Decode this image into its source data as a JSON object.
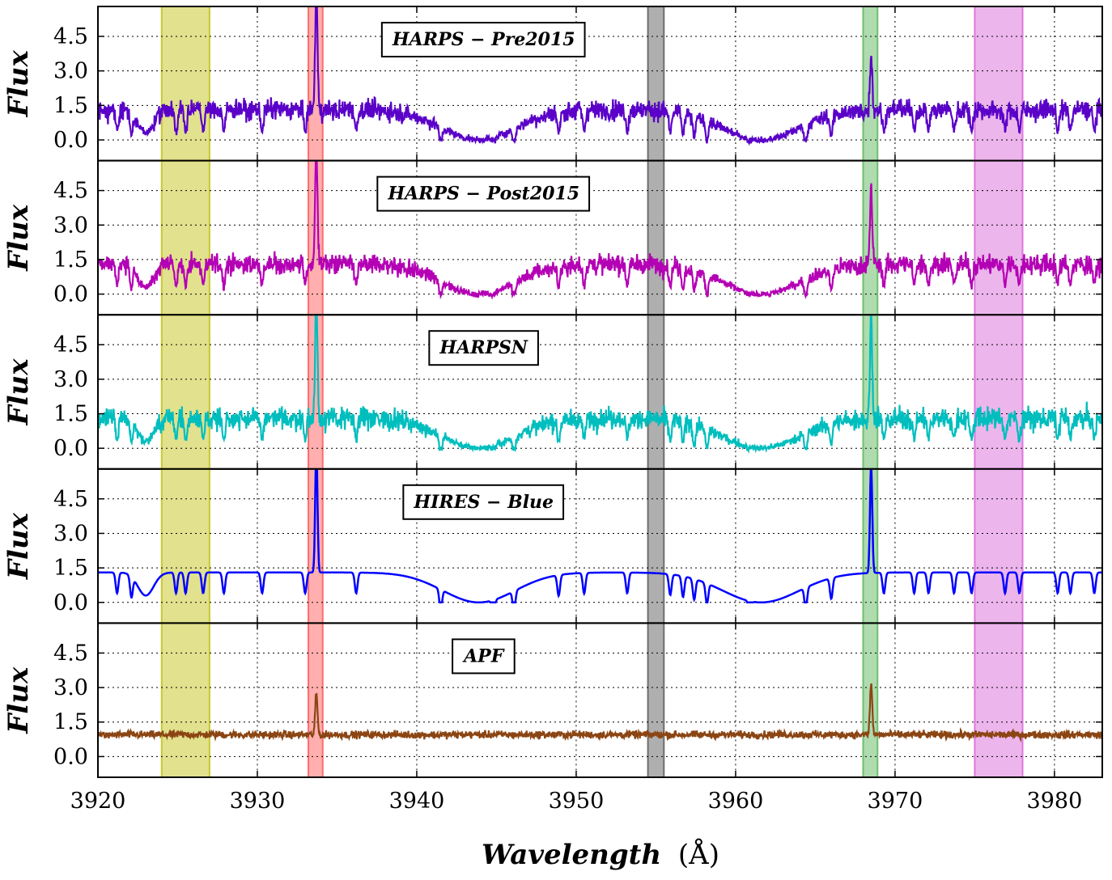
{
  "chart_data": {
    "type": "line",
    "layout": "5 vertically stacked panels sharing the x axis",
    "xlabel_main": "Wavelength",
    "xlabel_unit": "(Å)",
    "xlim": [
      3920,
      3983
    ],
    "x_ticks": [
      3920,
      3930,
      3940,
      3950,
      3960,
      3970,
      3980
    ],
    "ylabel": "Flux",
    "ylim": [
      -0.9,
      5.8
    ],
    "y_ticks": [
      "0.0",
      "1.5",
      "3.0",
      "4.5"
    ],
    "grid": true,
    "shaded_bands": [
      {
        "x0": 3924.0,
        "x1": 3927.0,
        "color": "#c8c832"
      },
      {
        "x0": 3933.2,
        "x1": 3934.1,
        "color": "#ff6e6e"
      },
      {
        "x0": 3954.5,
        "x1": 3955.5,
        "color": "#6e6e6e"
      },
      {
        "x0": 3968.0,
        "x1": 3968.9,
        "color": "#6ebe6e"
      },
      {
        "x0": 3975.0,
        "x1": 3978.0,
        "color": "#dc78dc"
      }
    ],
    "panels": [
      {
        "label": "HARPS − Pre2015",
        "color": "#5a00c8",
        "style": "noisy",
        "noise": 0.55,
        "scale": 1.0,
        "emission_peaks": [
          5.6,
          2.9
        ],
        "label_x": 3944.2
      },
      {
        "label": "HARPS − Post2015",
        "color": "#b400b4",
        "style": "noisy",
        "noise": 0.55,
        "scale": 1.0,
        "emission_peaks": [
          5.8,
          3.7
        ],
        "label_x": 3944.2
      },
      {
        "label": "HARPSN",
        "color": "#00bebe",
        "style": "noisy",
        "noise": 0.6,
        "scale": 1.0,
        "emission_peaks": [
          5.8,
          4.8
        ],
        "label_x": 3944.2
      },
      {
        "label": "HIRES − Blue",
        "color": "#0000ff",
        "style": "smooth",
        "noise": 0.0,
        "scale": 1.0,
        "emission_peaks": [
          5.8,
          5.1
        ],
        "label_x": 3944.2
      },
      {
        "label": "APF",
        "color": "#8b4513",
        "style": "flat",
        "noise": 0.28,
        "scale": 0.0,
        "emission_peaks": [
          2.2,
          2.6
        ],
        "label_x": 3944.2
      }
    ]
  }
}
